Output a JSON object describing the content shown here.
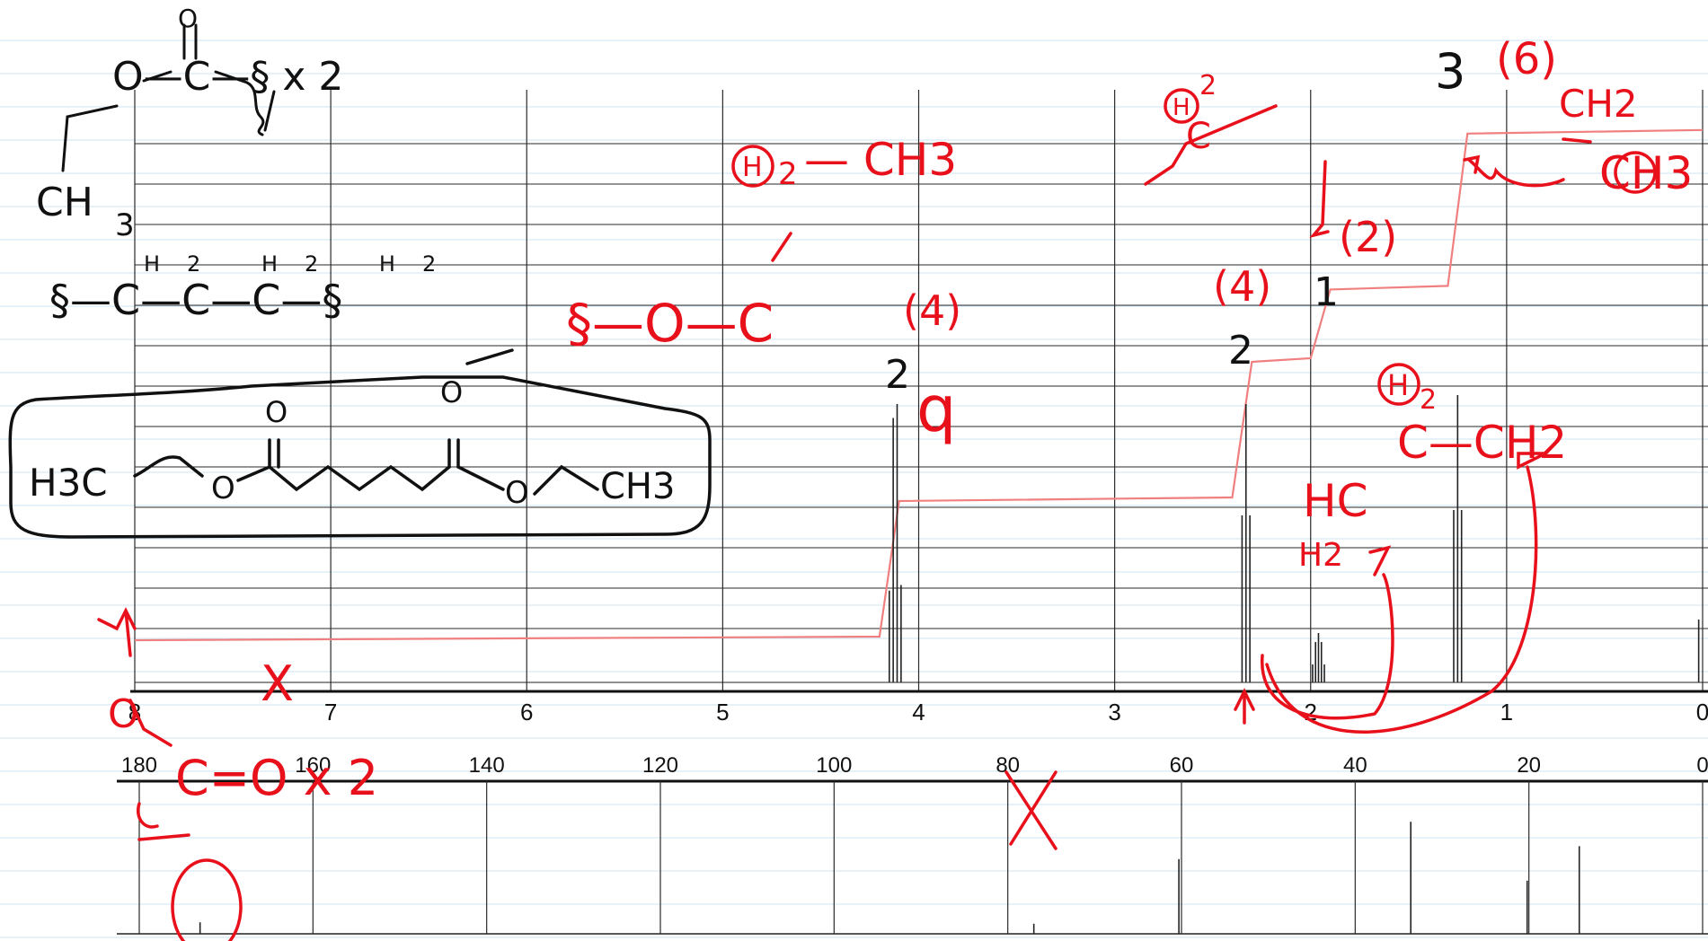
{
  "colors": {
    "grid": "#2a2a2a",
    "spectrum": "#222222",
    "integral": "#f08080",
    "ink_red": "#e8101a",
    "ink_black": "#111111",
    "notebook_lines": "#cfe3f2"
  },
  "chart_data": [
    {
      "type": "line",
      "title": "",
      "xlabel": "",
      "ylabel": "",
      "x_ticks": [
        "8",
        "7",
        "6",
        "5",
        "4",
        "3",
        "2",
        "1",
        "0"
      ],
      "xlim": [
        8,
        0
      ],
      "x_reversed": true,
      "grid": true,
      "series": [
        {
          "peaks": [
            {
              "ppm": 4.12,
              "multiplicity": "quartet",
              "integration_label": "2"
            },
            {
              "ppm": 2.33,
              "multiplicity": "triplet",
              "integration_label": "2"
            },
            {
              "ppm": 1.96,
              "multiplicity": "quintet",
              "integration_label": "1"
            },
            {
              "ppm": 1.25,
              "multiplicity": "triplet",
              "integration_label": "3"
            }
          ],
          "integral_steps": [
            {
              "from": 8.0,
              "to": 4.2,
              "level": 0.05
            },
            {
              "from": 4.1,
              "to": 2.4,
              "level": 0.3
            },
            {
              "from": 2.3,
              "to": 2.0,
              "level": 0.55
            },
            {
              "from": 1.9,
              "to": 1.3,
              "level": 0.68
            },
            {
              "from": 1.2,
              "to": 0.0,
              "level": 0.96
            }
          ]
        }
      ]
    },
    {
      "type": "line",
      "title": "",
      "xlabel": "",
      "ylabel": "",
      "x_ticks": [
        "180",
        "160",
        "140",
        "120",
        "100",
        "80",
        "60",
        "40",
        "20",
        "0"
      ],
      "xlim": [
        180,
        0
      ],
      "x_reversed": true,
      "grid": true,
      "series": [
        {
          "peaks": [
            {
              "ppm": 173.0,
              "height": 0.08
            },
            {
              "ppm": 77.0,
              "height": 0.07
            },
            {
              "ppm": 60.3,
              "height": 0.52
            },
            {
              "ppm": 33.6,
              "height": 0.78
            },
            {
              "ppm": 20.2,
              "height": 0.37
            },
            {
              "ppm": 14.2,
              "height": 0.61
            }
          ]
        }
      ]
    }
  ],
  "annotations": {
    "black": {
      "ester_top": "O—C—§ x 2",
      "ester_carbonyl_o": "O",
      "ester_ch3": "CH",
      "ester_ch3_sub": "3",
      "chain_chain": "§—C—C—C—§",
      "chain_h2_labels": "H2 H2 H2",
      "boxed_left": "H3C",
      "boxed_o1": "O",
      "boxed_o2": "O",
      "boxed_right": "CH3",
      "boxed_o_top1": "O",
      "boxed_o_top2": "O",
      "int_2a": "2",
      "int_2b": "2",
      "int_1": "1",
      "int_3": "3"
    },
    "red": {
      "h2_circled_mid": "H",
      "h2_sub_mid": "2",
      "ch3_mid": "— CH3",
      "o_chain": "§—O—C",
      "count_4_a": "(4)",
      "q_mark": "q",
      "h2_top": "H",
      "h2_top_sub": "2",
      "c_top": "C",
      "count_4_b": "(4)",
      "count_2": "(2)",
      "count_6": "(6)",
      "ch2_right": "CH2",
      "ch3_right": "CH3",
      "h2_circled_right": "H",
      "h2_circled_right_sub": "2",
      "ch2_chain": "C—CH2",
      "hc_label": "HC",
      "h2_bottom": "H2",
      "co_label": "C=O x 2",
      "o_small": "O",
      "x_mark_a": "X",
      "x_mark_b": "X"
    }
  }
}
